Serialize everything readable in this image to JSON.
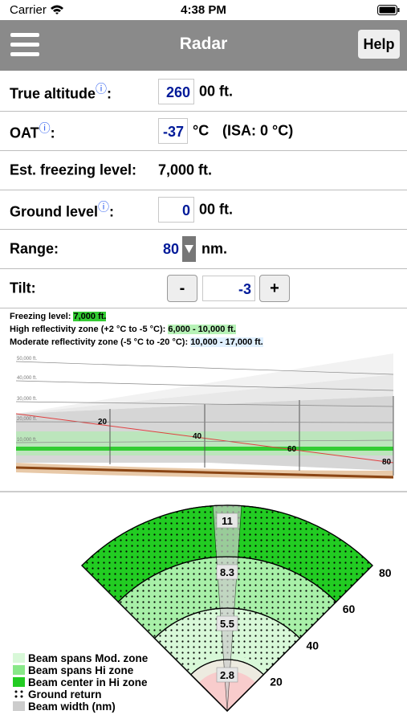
{
  "status_bar": {
    "carrier": "Carrier",
    "time": "4:38 PM"
  },
  "nav": {
    "title": "Radar",
    "help": "Help"
  },
  "form": {
    "rows": [
      {
        "label": "True altitude",
        "info": "ⓘ",
        "colon": ":",
        "value": "260",
        "unit": "00 ft."
      },
      {
        "label": "OAT",
        "info": "ⓘ",
        "colon": ":",
        "value": "-37",
        "unit": "°C",
        "note": "(ISA: 0 °C)"
      },
      {
        "label": "Est. freezing level:",
        "text": "7,000 ft."
      },
      {
        "label": "Ground level",
        "info": "ⓘ",
        "colon": ":",
        "value": "0",
        "unit": "00 ft."
      },
      {
        "label": "Range:",
        "value": "80",
        "unit": "nm."
      },
      {
        "label": "Tilt:",
        "minus": "-",
        "value": "-3",
        "plus": "+"
      }
    ]
  },
  "zones": [
    {
      "label": "Freezing level:",
      "value": "7,000 ft."
    },
    {
      "label": "High reflectivity zone (+2 °C to -5 °C):",
      "value": "6,000 - 10,000 ft."
    },
    {
      "label": "Moderate reflectivity zone (-5 °C to -20 °C):",
      "value": "10,000 - 17,000 ft."
    }
  ],
  "profile": {
    "altitudes": [
      "50,000 ft.",
      "40,000 ft.",
      "30,000 ft.",
      "20,000 ft.",
      "10,000 ft."
    ],
    "ranges": [
      "20",
      "40",
      "60",
      "80"
    ]
  },
  "plan_view": {
    "beam_widths": [
      "11",
      "8.3",
      "5.5",
      "2.8"
    ],
    "ranges": [
      "20",
      "40",
      "60",
      "80"
    ],
    "legend": [
      "Beam spans Mod. zone",
      "Beam spans Hi zone",
      "Beam center in Hi zone",
      "Ground return",
      "Beam width (nm)"
    ]
  }
}
